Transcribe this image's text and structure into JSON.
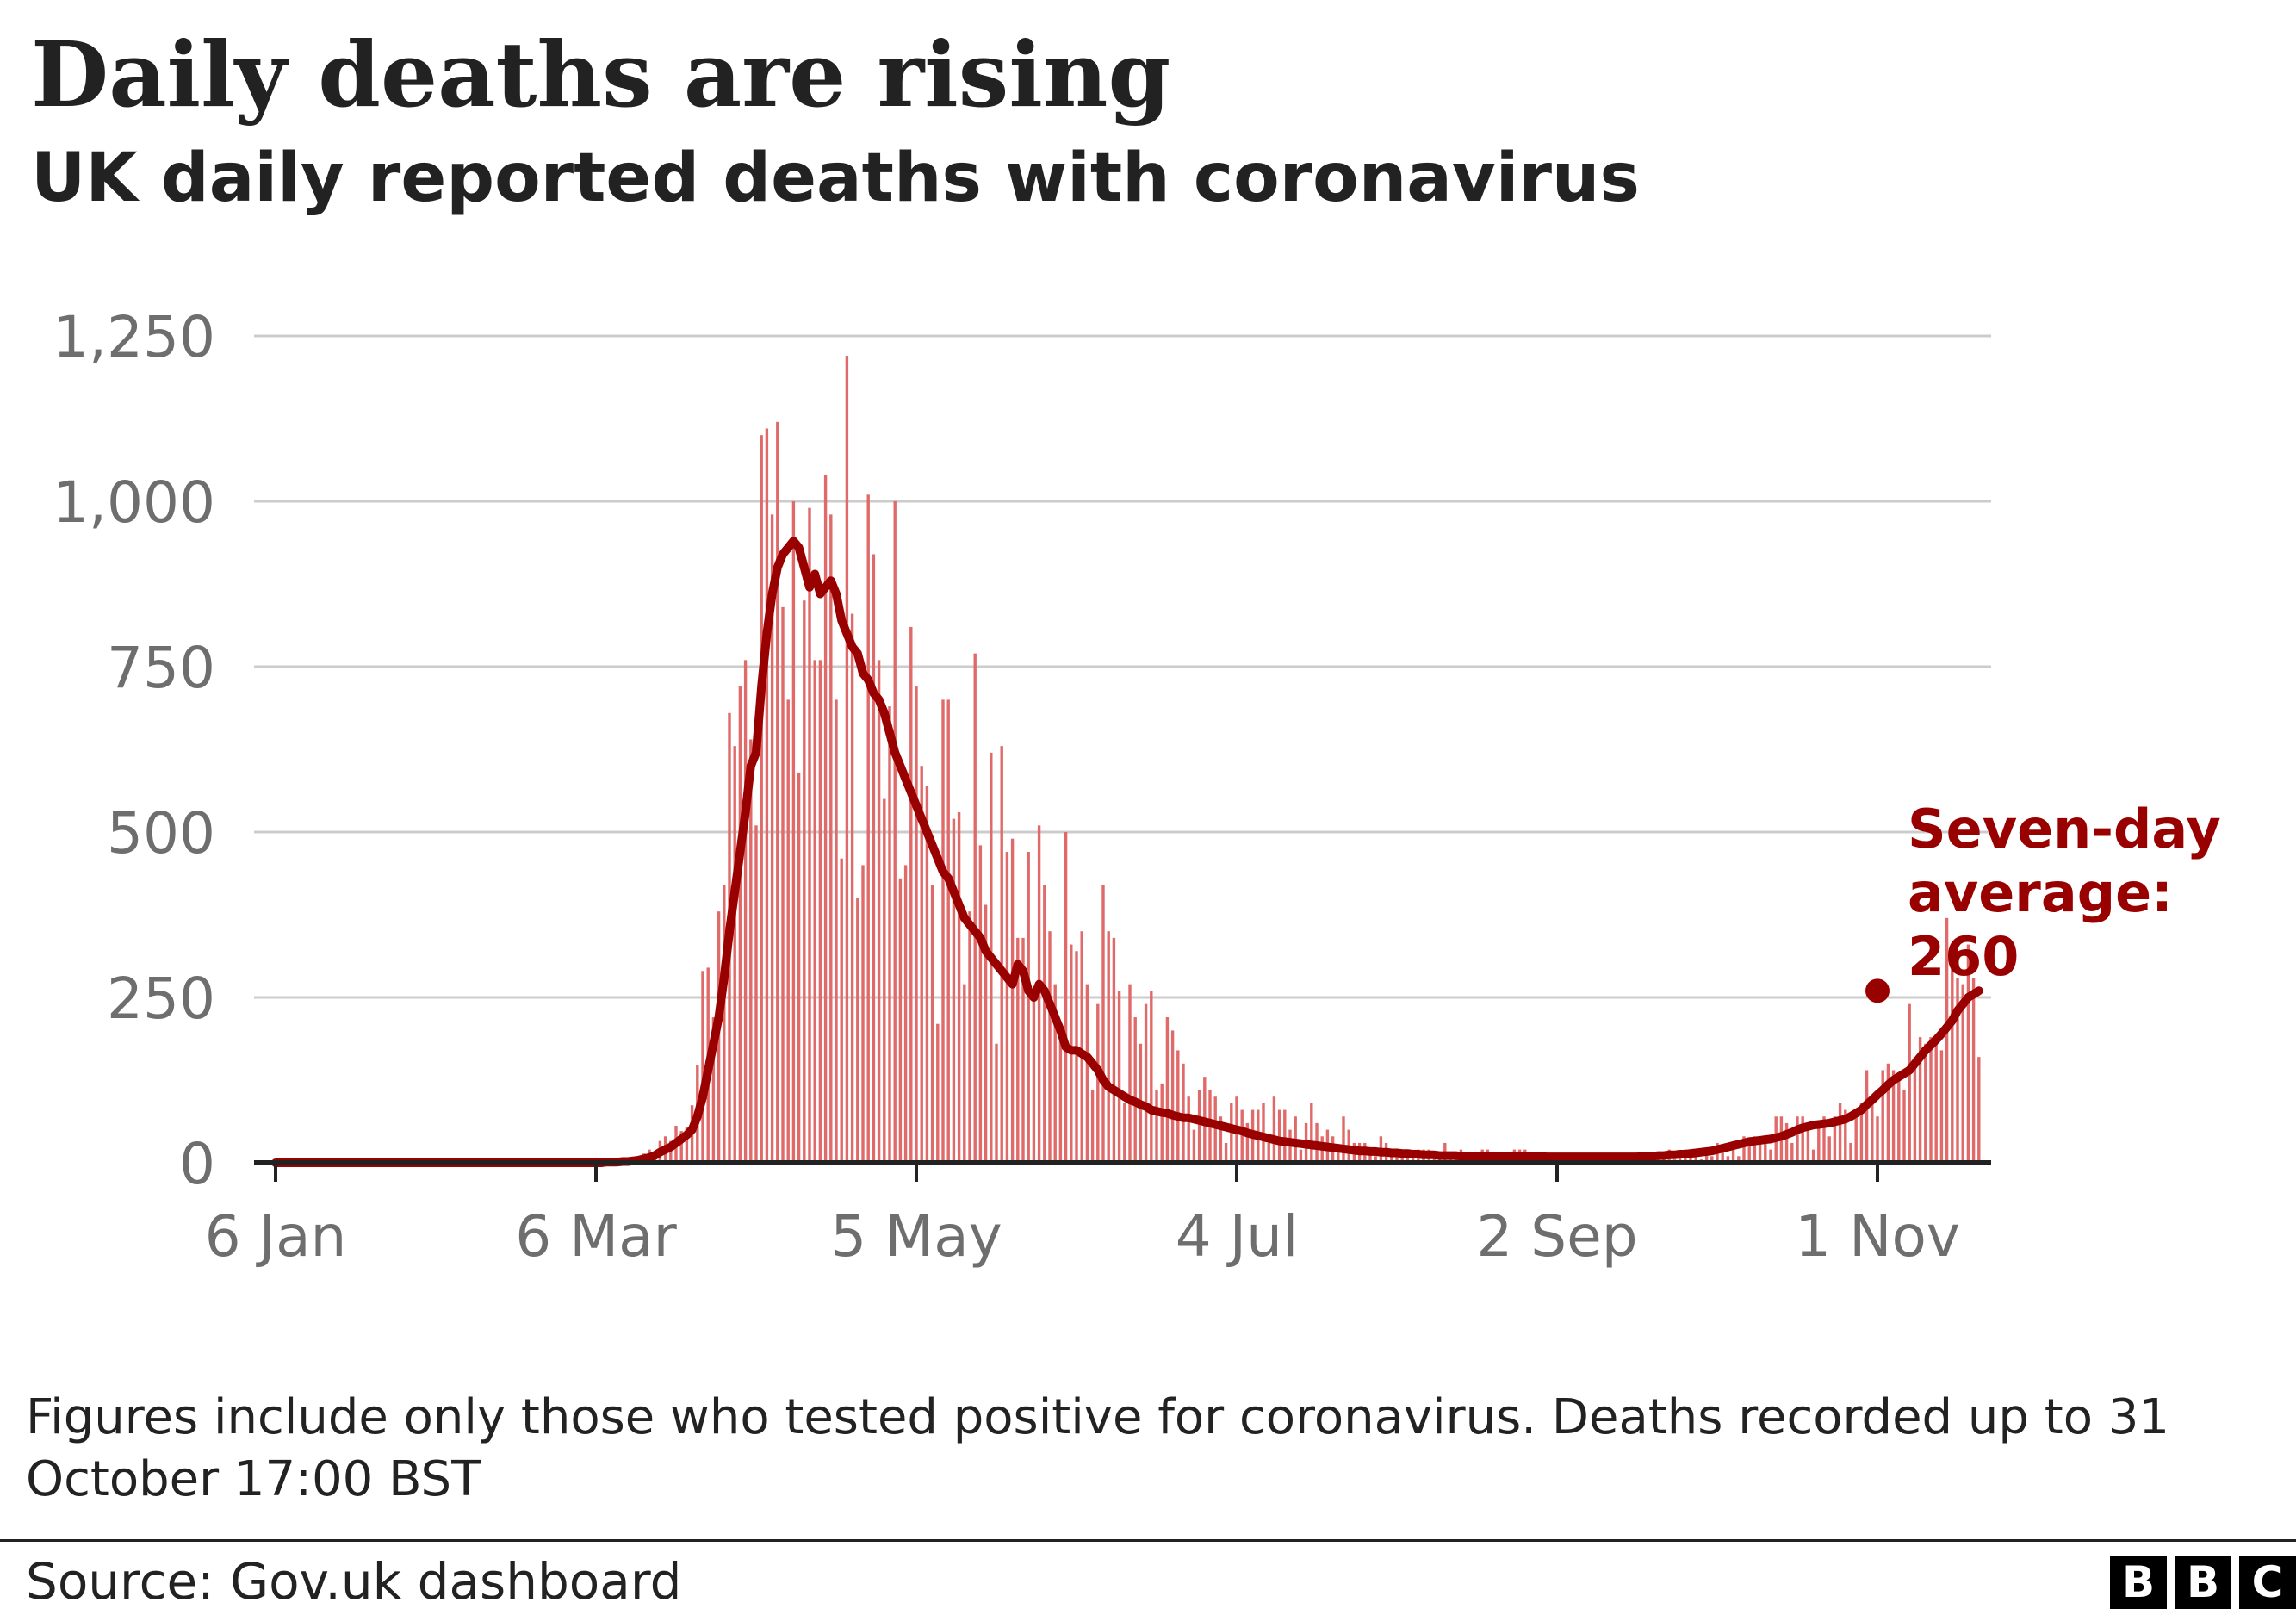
{
  "title": "Daily deaths are rising",
  "subtitle": "UK daily reported deaths with coronavirus",
  "note": "Figures include only those who tested positive for coronavirus. Deaths recorded up to 31 October 17:00 BST",
  "source": "Source: Gov.uk dashboard",
  "logo": {
    "letters": [
      "B",
      "B",
      "C"
    ]
  },
  "colors": {
    "bars": "#e06a6a",
    "average": "#990000",
    "grid": "#cccccc",
    "axis": "#222222"
  },
  "chart_data": {
    "type": "bar",
    "x_start": "2020-01-06",
    "x_end": "2020-11-01",
    "ylim": [
      0,
      1250
    ],
    "yticks": [
      0,
      250,
      500,
      750,
      1000,
      1250
    ],
    "ytick_labels": [
      "0",
      "250",
      "500",
      "750",
      "1,000",
      "1,250"
    ],
    "xticks": [
      "2020-01-06",
      "2020-03-06",
      "2020-05-05",
      "2020-07-04",
      "2020-09-02",
      "2020-11-01"
    ],
    "xtick_labels": [
      "6 Jan",
      "6 Mar",
      "5 May",
      "4 Jul",
      "2 Sep",
      "1 Nov"
    ],
    "grid": true,
    "daily_deaths": {
      "start_date": "2020-03-06",
      "values": [
        1,
        1,
        0,
        2,
        1,
        3,
        6,
        5,
        10,
        14,
        20,
        16,
        33,
        40,
        33,
        56,
        48,
        54,
        87,
        148,
        290,
        295,
        220,
        380,
        420,
        680,
        630,
        720,
        760,
        640,
        510,
        1100,
        1110,
        980,
        1120,
        840,
        700,
        1000,
        590,
        850,
        990,
        760,
        760,
        1040,
        980,
        700,
        460,
        1220,
        830,
        400,
        450,
        1010,
        920,
        760,
        550,
        690,
        1000,
        430,
        450,
        810,
        720,
        600,
        570,
        420,
        210,
        700,
        700,
        520,
        530,
        270,
        380,
        770,
        480,
        390,
        620,
        180,
        630,
        470,
        490,
        340,
        340,
        470,
        250,
        510,
        420,
        350,
        270,
        190,
        500,
        330,
        320,
        350,
        270,
        110,
        240,
        420,
        350,
        340,
        260,
        90,
        270,
        220,
        180,
        240,
        260,
        110,
        120,
        220,
        200,
        170,
        150,
        100,
        50,
        110,
        130,
        110,
        100,
        70,
        30,
        90,
        100,
        80,
        60,
        80,
        80,
        90,
        30,
        100,
        80,
        80,
        50,
        70,
        20,
        60,
        90,
        60,
        40,
        50,
        40,
        20,
        70,
        50,
        30,
        30,
        30,
        20,
        10,
        40,
        30,
        20,
        20,
        20,
        10,
        10,
        20,
        20,
        20,
        10,
        10,
        30,
        10,
        10,
        20,
        10,
        10,
        10,
        20,
        20,
        10,
        10,
        5,
        10,
        20,
        20,
        20,
        10,
        5,
        10,
        10,
        10,
        10,
        5,
        5,
        10,
        10,
        10,
        5,
        5,
        10,
        5,
        10,
        10,
        5,
        5,
        5,
        10,
        5,
        5,
        5,
        10,
        5,
        20,
        5,
        10,
        20,
        10,
        10,
        5,
        20,
        10,
        30,
        20,
        10,
        30,
        10,
        40,
        30,
        40,
        40,
        30,
        20,
        70,
        70,
        60,
        30,
        70,
        70,
        50,
        20,
        60,
        70,
        40,
        70,
        90,
        80,
        30,
        80,
        90,
        140,
        100,
        70,
        140,
        150,
        140,
        130,
        110,
        240,
        160,
        190,
        180,
        190,
        190,
        170,
        370,
        310,
        280,
        270,
        330,
        280,
        160
      ]
    },
    "seven_day_average": {
      "start_date": "2020-03-06",
      "values": [
        0,
        0,
        1,
        1,
        1,
        2,
        2,
        3,
        4,
        6,
        8,
        11,
        16,
        20,
        24,
        30,
        36,
        42,
        50,
        70,
        100,
        140,
        180,
        220,
        280,
        350,
        410,
        470,
        530,
        600,
        620,
        720,
        800,
        860,
        900,
        920,
        930,
        940,
        930,
        900,
        870,
        890,
        860,
        870,
        880,
        860,
        820,
        800,
        780,
        770,
        740,
        730,
        710,
        700,
        680,
        650,
        620,
        600,
        580,
        560,
        540,
        520,
        500,
        480,
        460,
        440,
        430,
        410,
        390,
        370,
        360,
        350,
        340,
        320,
        310,
        300,
        290,
        280,
        270,
        300,
        290,
        260,
        250,
        270,
        260,
        240,
        220,
        200,
        175,
        170,
        170,
        165,
        160,
        150,
        140,
        125,
        115,
        110,
        105,
        100,
        95,
        92,
        88,
        85,
        80,
        78,
        76,
        75,
        72,
        70,
        68,
        68,
        66,
        64,
        62,
        60,
        58,
        56,
        54,
        52,
        50,
        48,
        45,
        43,
        41,
        39,
        37,
        35,
        33,
        32,
        31,
        30,
        29,
        28,
        27,
        26,
        25,
        24,
        23,
        22,
        21,
        20,
        19,
        18,
        18,
        17,
        17,
        16,
        16,
        15,
        15,
        14,
        14,
        13,
        13,
        12,
        12,
        12,
        11,
        11,
        11,
        11,
        10,
        10,
        10,
        10,
        10,
        10,
        10,
        10,
        10,
        10,
        10,
        10,
        10,
        10,
        10,
        10,
        9,
        9,
        9,
        9,
        9,
        9,
        9,
        9,
        9,
        9,
        9,
        9,
        9,
        9,
        9,
        9,
        9,
        9,
        10,
        10,
        10,
        11,
        11,
        12,
        12,
        13,
        13,
        14,
        15,
        16,
        17,
        18,
        20,
        22,
        24,
        26,
        28,
        30,
        32,
        33,
        34,
        35,
        36,
        38,
        40,
        43,
        46,
        50,
        53,
        55,
        57,
        58,
        59,
        60,
        62,
        64,
        66,
        70,
        75,
        80,
        88,
        95,
        103,
        110,
        118,
        125,
        130,
        135,
        140,
        150,
        160,
        170,
        178,
        186,
        195,
        205,
        215,
        230,
        240,
        250,
        255,
        260
      ]
    },
    "annotation": {
      "lines": [
        "Seven-day",
        "average:",
        "260"
      ],
      "value": 260,
      "date": "2020-11-01"
    }
  }
}
